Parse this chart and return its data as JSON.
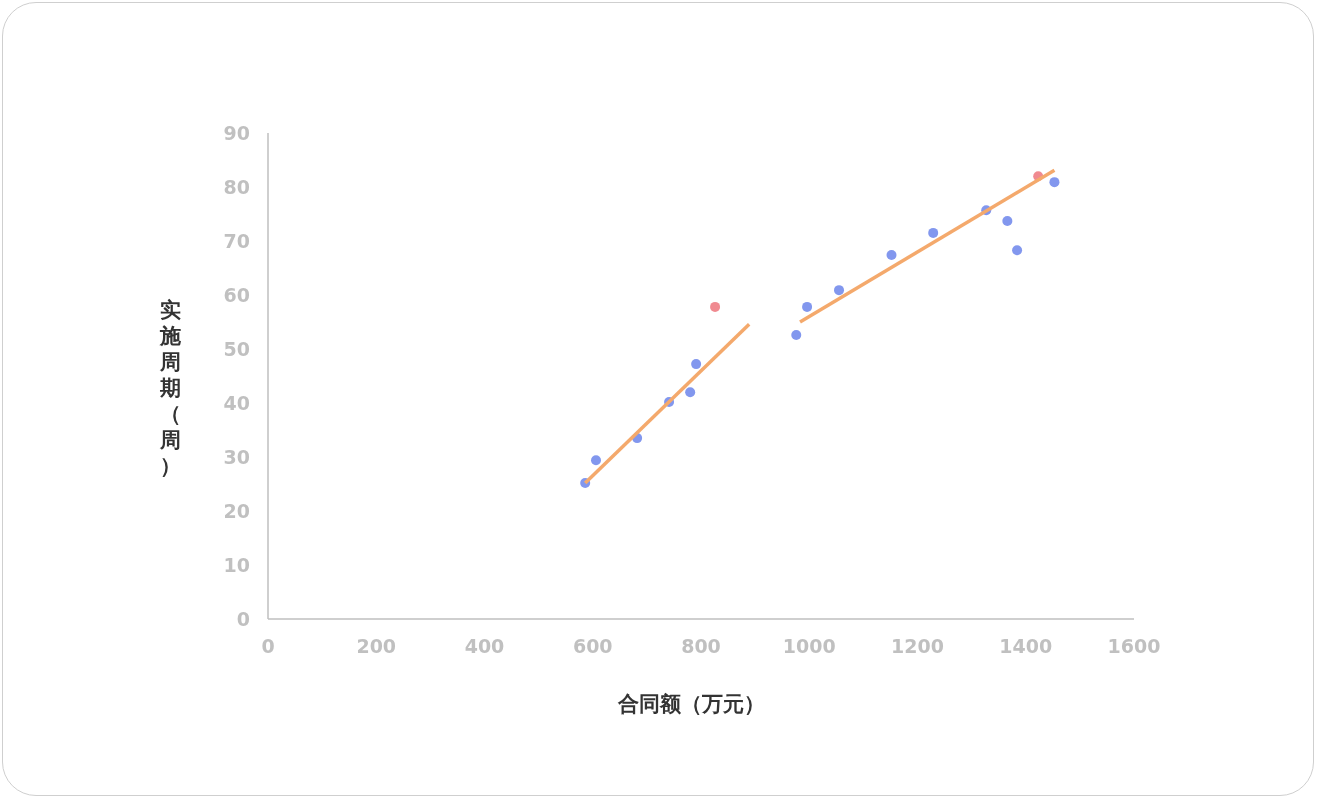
{
  "chart_data": {
    "type": "scatter",
    "xlabel": "合同额（万元）",
    "ylabel": "实施周期（周）",
    "xlim": [
      0,
      1600
    ],
    "ylim": [
      0,
      90
    ],
    "xticks": [
      0,
      200,
      400,
      600,
      800,
      1000,
      1200,
      1400,
      1600
    ],
    "yticks": [
      0,
      10,
      20,
      30,
      40,
      50,
      60,
      70,
      80,
      90
    ],
    "grid": false,
    "series": [
      {
        "marker": "circle",
        "color": "#8297ee",
        "x": [
          586,
          606,
          682,
          741,
          780,
          791,
          976,
          996,
          1055,
          1152,
          1229,
          1327,
          1366,
          1384,
          1453
        ],
        "values": [
          25.2,
          29.4,
          33.5,
          40.2,
          42.0,
          47.2,
          52.6,
          57.8,
          60.9,
          67.4,
          71.5,
          75.7,
          73.7,
          68.3,
          80.9
        ]
      },
      {
        "marker": "circle",
        "color": "#f08a90",
        "x": [
          826,
          1423
        ],
        "values": [
          57.8,
          82.0
        ]
      },
      {
        "type": "line",
        "marker": "none",
        "color": "#f4a96c",
        "x": [
          586,
          889
        ],
        "values": [
          25.2,
          54.6
        ]
      },
      {
        "type": "line",
        "marker": "none",
        "color": "#f4a96c",
        "x": [
          983,
          1453
        ],
        "values": [
          55.0,
          83.1
        ]
      }
    ]
  }
}
